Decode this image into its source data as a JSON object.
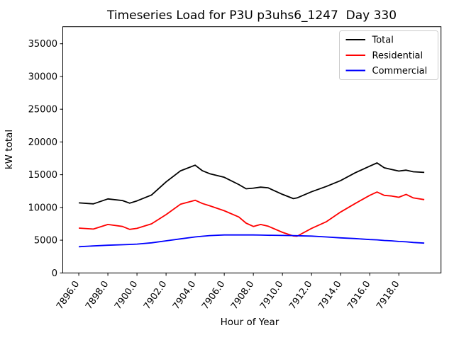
{
  "chart_data": {
    "type": "line",
    "title": "Timeseries Load for P3U p3uhs6_1247  Day 330",
    "xlabel": "Hour of Year",
    "ylabel": "kW total",
    "xlim": [
      7894.9,
      7920.9
    ],
    "ylim": [
      0,
      37600
    ],
    "grid": false,
    "legend_position": "upper right",
    "x_ticks": [
      7896,
      7898,
      7900,
      7902,
      7904,
      7906,
      7908,
      7910,
      7912,
      7914,
      7916,
      7918
    ],
    "x_tick_labels": [
      "7896.0",
      "7898.0",
      "7900.0",
      "7902.0",
      "7904.0",
      "7906.0",
      "7908.0",
      "7910.0",
      "7912.0",
      "7914.0",
      "7916.0",
      "7918.0"
    ],
    "x_tick_rotation_deg": 55,
    "y_ticks": [
      0,
      5000,
      10000,
      15000,
      20000,
      25000,
      30000,
      35000
    ],
    "y_tick_labels": [
      "0",
      "5000",
      "10000",
      "15000",
      "20000",
      "25000",
      "30000",
      "35000"
    ],
    "x": [
      7896,
      7897,
      7898,
      7899,
      7899.5,
      7900,
      7901,
      7902,
      7903,
      7904,
      7904.5,
      7905,
      7906,
      7907,
      7907.5,
      7908,
      7908.5,
      7909,
      7910,
      7910.75,
      7911,
      7912,
      7913,
      7914,
      7915,
      7916,
      7916.5,
      7917,
      7917.5,
      7918,
      7918.5,
      7919,
      7919.75
    ],
    "series": [
      {
        "name": "Total",
        "color": "#000000",
        "values": [
          10700,
          10550,
          11300,
          11050,
          10650,
          11000,
          11900,
          13900,
          15600,
          16450,
          15600,
          15150,
          14600,
          13500,
          12850,
          12950,
          13100,
          13000,
          12000,
          11350,
          11450,
          12400,
          13200,
          14100,
          15300,
          16300,
          16800,
          16050,
          15800,
          15550,
          15700,
          15450,
          15350
        ]
      },
      {
        "name": "Residential",
        "color": "#ff0000",
        "values": [
          6850,
          6700,
          7400,
          7100,
          6650,
          6800,
          7500,
          8900,
          10500,
          11100,
          10600,
          10250,
          9500,
          8550,
          7600,
          7100,
          7400,
          7150,
          6200,
          5650,
          5600,
          6800,
          7800,
          9300,
          10600,
          11850,
          12350,
          11850,
          11750,
          11550,
          12000,
          11450,
          11200
        ]
      },
      {
        "name": "Commercial",
        "color": "#0000ff",
        "values": [
          4000,
          4120,
          4230,
          4300,
          4350,
          4400,
          4600,
          4900,
          5200,
          5500,
          5600,
          5700,
          5800,
          5800,
          5800,
          5800,
          5780,
          5760,
          5720,
          5700,
          5680,
          5620,
          5500,
          5350,
          5250,
          5100,
          5050,
          4950,
          4900,
          4800,
          4750,
          4650,
          4550
        ]
      }
    ]
  }
}
